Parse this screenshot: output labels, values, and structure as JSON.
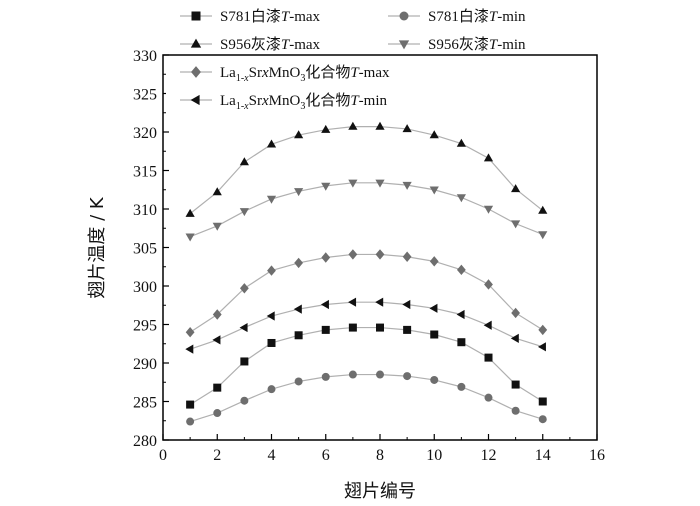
{
  "chart_data": {
    "type": "line",
    "xlabel": "翅片编号",
    "ylabel": "翅片温度 / K",
    "xlim": [
      0,
      16
    ],
    "ylim": [
      280,
      330
    ],
    "xticks": [
      0,
      2,
      4,
      6,
      8,
      10,
      12,
      14,
      16
    ],
    "yticks": [
      280,
      285,
      290,
      295,
      300,
      305,
      310,
      315,
      320,
      325,
      330
    ],
    "legend_position": "top-left",
    "grid": false,
    "x": [
      1,
      2,
      3,
      4,
      5,
      6,
      7,
      8,
      9,
      10,
      11,
      12,
      13,
      14
    ],
    "series": [
      {
        "name": "S781白漆T-max",
        "marker": "square",
        "legend_parts": [
          {
            "t": "S781",
            "s": "n"
          },
          {
            "t": "白漆",
            "s": "cjk"
          },
          {
            "t": "T",
            "s": "i"
          },
          {
            "t": "-max",
            "s": "n"
          }
        ],
        "values": [
          284.6,
          286.8,
          290.2,
          292.6,
          293.6,
          294.3,
          294.6,
          294.6,
          294.3,
          293.7,
          292.7,
          290.7,
          287.2,
          285.0
        ]
      },
      {
        "name": "S781白漆T-min",
        "marker": "circle",
        "legend_parts": [
          {
            "t": "S781",
            "s": "n"
          },
          {
            "t": "白漆",
            "s": "cjk"
          },
          {
            "t": "T",
            "s": "i"
          },
          {
            "t": "-min",
            "s": "n"
          }
        ],
        "values": [
          282.4,
          283.5,
          285.1,
          286.6,
          287.6,
          288.2,
          288.5,
          288.5,
          288.3,
          287.8,
          286.9,
          285.5,
          283.8,
          282.7
        ]
      },
      {
        "name": "S956灰漆T-max",
        "marker": "triangle-up",
        "legend_parts": [
          {
            "t": "S956",
            "s": "n"
          },
          {
            "t": "灰漆",
            "s": "cjk"
          },
          {
            "t": "T",
            "s": "i"
          },
          {
            "t": "-max",
            "s": "n"
          }
        ],
        "values": [
          309.4,
          312.2,
          316.1,
          318.4,
          319.6,
          320.3,
          320.7,
          320.7,
          320.4,
          319.6,
          318.5,
          316.6,
          312.6,
          309.8
        ]
      },
      {
        "name": "S956灰漆T-min",
        "marker": "triangle-down",
        "legend_parts": [
          {
            "t": "S956",
            "s": "n"
          },
          {
            "t": "灰漆",
            "s": "cjk"
          },
          {
            "t": "T",
            "s": "i"
          },
          {
            "t": "-min",
            "s": "n"
          }
        ],
        "values": [
          306.4,
          307.8,
          309.7,
          311.3,
          312.3,
          313.0,
          313.4,
          313.4,
          313.1,
          312.5,
          311.5,
          310.0,
          308.1,
          306.7
        ]
      },
      {
        "name": "La1-xSrxMnO3化合物T-max",
        "marker": "diamond",
        "legend_parts": [
          {
            "t": "La",
            "s": "n"
          },
          {
            "t": "1-",
            "s": "sub"
          },
          {
            "t": "x",
            "s": "subi"
          },
          {
            "t": "Sr",
            "s": "n"
          },
          {
            "t": "x",
            "s": "i"
          },
          {
            "t": "MnO",
            "s": "n"
          },
          {
            "t": "3",
            "s": "sub"
          },
          {
            "t": "化合物",
            "s": "cjk"
          },
          {
            "t": "T",
            "s": "i"
          },
          {
            "t": "-max",
            "s": "n"
          }
        ],
        "values": [
          294.0,
          296.3,
          299.7,
          302.0,
          303.0,
          303.7,
          304.1,
          304.1,
          303.8,
          303.2,
          302.1,
          300.2,
          296.5,
          294.3
        ]
      },
      {
        "name": "La1-xSrxMnO3化合物T-min",
        "marker": "triangle-left",
        "legend_parts": [
          {
            "t": "La",
            "s": "n"
          },
          {
            "t": "1-",
            "s": "sub"
          },
          {
            "t": "x",
            "s": "subi"
          },
          {
            "t": "Sr",
            "s": "n"
          },
          {
            "t": "x",
            "s": "i"
          },
          {
            "t": "MnO",
            "s": "n"
          },
          {
            "t": "3",
            "s": "sub"
          },
          {
            "t": "化合物",
            "s": "cjk"
          },
          {
            "t": "T",
            "s": "i"
          },
          {
            "t": "-min",
            "s": "n"
          }
        ],
        "values": [
          291.8,
          293.0,
          294.6,
          296.1,
          297.0,
          297.6,
          297.9,
          297.9,
          297.6,
          297.1,
          296.3,
          294.9,
          293.2,
          292.1
        ]
      }
    ]
  },
  "colors": {
    "line": "#b0b0b0",
    "marker_dark": "#111111",
    "marker_gray": "#6e6e6e",
    "axis": "#000000"
  }
}
